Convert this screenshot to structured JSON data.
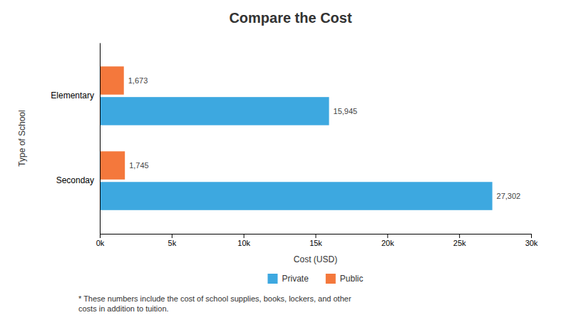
{
  "chart_data": {
    "type": "bar",
    "orientation": "horizontal",
    "title": "Compare the Cost",
    "categories": [
      "Seconday",
      "Elementary"
    ],
    "series": [
      {
        "name": "Private",
        "color": "#3DA8E0",
        "values": [
          27302,
          15945
        ],
        "value_labels": [
          "27,302",
          "15,945"
        ]
      },
      {
        "name": "Public",
        "color": "#F4783C",
        "values": [
          1745,
          1673
        ],
        "value_labels": [
          "1,745",
          "1,673"
        ]
      }
    ],
    "xlabel": "Cost (USD)",
    "ylabel": "Type of School",
    "xlim": [
      0,
      30000
    ],
    "xticks": [
      {
        "value": 0,
        "label": "0k"
      },
      {
        "value": 5000,
        "label": "5k"
      },
      {
        "value": 10000,
        "label": "10k"
      },
      {
        "value": 15000,
        "label": "15k"
      },
      {
        "value": 20000,
        "label": "20k"
      },
      {
        "value": 25000,
        "label": "25k"
      },
      {
        "value": 30000,
        "label": "30k"
      }
    ],
    "data_labels": true,
    "grid": false,
    "legend": "bottom",
    "footnote": "* These numbers include the cost of school supplies, books, lockers, and other\ncosts in addition to tuition."
  }
}
